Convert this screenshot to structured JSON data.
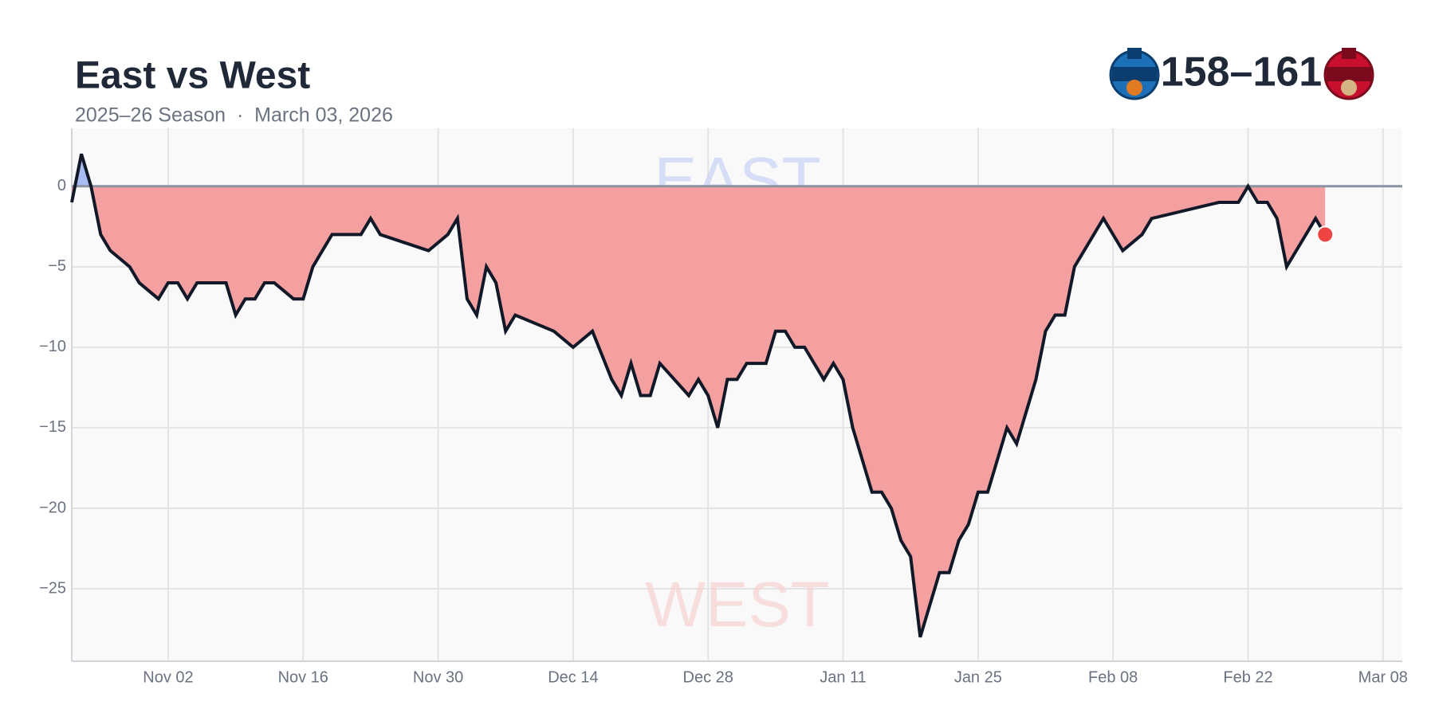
{
  "chart_data": {
    "type": "area-line",
    "title": "East vs West",
    "subtitle": "2025–26 Season  ·  March 03, 2026",
    "score": "158–161",
    "top_label": "EAST",
    "bottom_label": "WEST",
    "x": [
      "Oct 23",
      "Oct 24",
      "Oct 25",
      "Oct 26",
      "Oct 27",
      "Oct 29",
      "Oct 30",
      "Nov 01",
      "Nov 02",
      "Nov 03",
      "Nov 04",
      "Nov 05",
      "Nov 08",
      "Nov 09",
      "Nov 10",
      "Nov 11",
      "Nov 12",
      "Nov 13",
      "Nov 15",
      "Nov 16",
      "Nov 17",
      "Nov 19",
      "Nov 22",
      "Nov 23",
      "Nov 24",
      "Nov 29",
      "Dec 01",
      "Dec 02",
      "Dec 03",
      "Dec 04",
      "Dec 05",
      "Dec 06",
      "Dec 07",
      "Dec 08",
      "Dec 12",
      "Dec 14",
      "Dec 16",
      "Dec 18",
      "Dec 19",
      "Dec 20",
      "Dec 21",
      "Dec 22",
      "Dec 23",
      "Dec 26",
      "Dec 27",
      "Dec 28",
      "Dec 29",
      "Dec 30",
      "Dec 31",
      "Jan 01",
      "Jan 03",
      "Jan 04",
      "Jan 05",
      "Jan 06",
      "Jan 07",
      "Jan 09",
      "Jan 10",
      "Jan 11",
      "Jan 12",
      "Jan 14",
      "Jan 15",
      "Jan 16",
      "Jan 17",
      "Jan 18",
      "Jan 19",
      "Jan 21",
      "Jan 22",
      "Jan 23",
      "Jan 24",
      "Jan 25",
      "Jan 26",
      "Jan 28",
      "Jan 29",
      "Jan 31",
      "Feb 01",
      "Feb 02",
      "Feb 03",
      "Feb 04",
      "Feb 07",
      "Feb 09",
      "Feb 11",
      "Feb 12",
      "Feb 19",
      "Feb 21",
      "Feb 22",
      "Feb 23",
      "Feb 24",
      "Feb 25",
      "Feb 26",
      "Mar 01",
      "Mar 02"
    ],
    "values": [
      -1,
      2,
      0,
      -3,
      -4,
      -5,
      -6,
      -7,
      -6,
      -6,
      -7,
      -6,
      -6,
      -8,
      -7,
      -7,
      -6,
      -6,
      -7,
      -7,
      -5,
      -3,
      -3,
      -2,
      -3,
      -4,
      -3,
      -2,
      -7,
      -8,
      -5,
      -6,
      -9,
      -8,
      -9,
      -10,
      -9,
      -12,
      -13,
      -11,
      -13,
      -13,
      -11,
      -13,
      -12,
      -13,
      -15,
      -12,
      -12,
      -11,
      -11,
      -9,
      -9,
      -10,
      -10,
      -12,
      -11,
      -12,
      -15,
      -19,
      -19,
      -20,
      -22,
      -23,
      -28,
      -24,
      -24,
      -22,
      -21,
      -19,
      -19,
      -15,
      -16,
      -12,
      -9,
      -8,
      -8,
      -5,
      -2,
      -4,
      -3,
      -2,
      -1,
      -1,
      0,
      -1,
      -1,
      -2,
      -5,
      -2,
      -3
    ],
    "color": "#111827",
    "fill_above": "#a9bdf2",
    "fill_below": "#f4a0a0",
    "highlight_color": "#ef4444",
    "xlim": [
      "Oct 23",
      "Mar 10"
    ],
    "xticks": [
      "Nov 02",
      "Nov 16",
      "Nov 30",
      "Dec 14",
      "Dec 28",
      "Jan 11",
      "Jan 25",
      "Feb 08",
      "Feb 22",
      "Mar 08"
    ],
    "ylim": [
      -29.5,
      3.6
    ],
    "yticks": [
      0,
      {
        "value": -5,
        "label": "−5"
      },
      {
        "value": -10,
        "label": "−10"
      },
      {
        "value": -15,
        "label": "−15"
      },
      {
        "value": -20,
        "label": "−20"
      },
      {
        "value": -25,
        "label": "−25"
      }
    ],
    "grid": true
  }
}
